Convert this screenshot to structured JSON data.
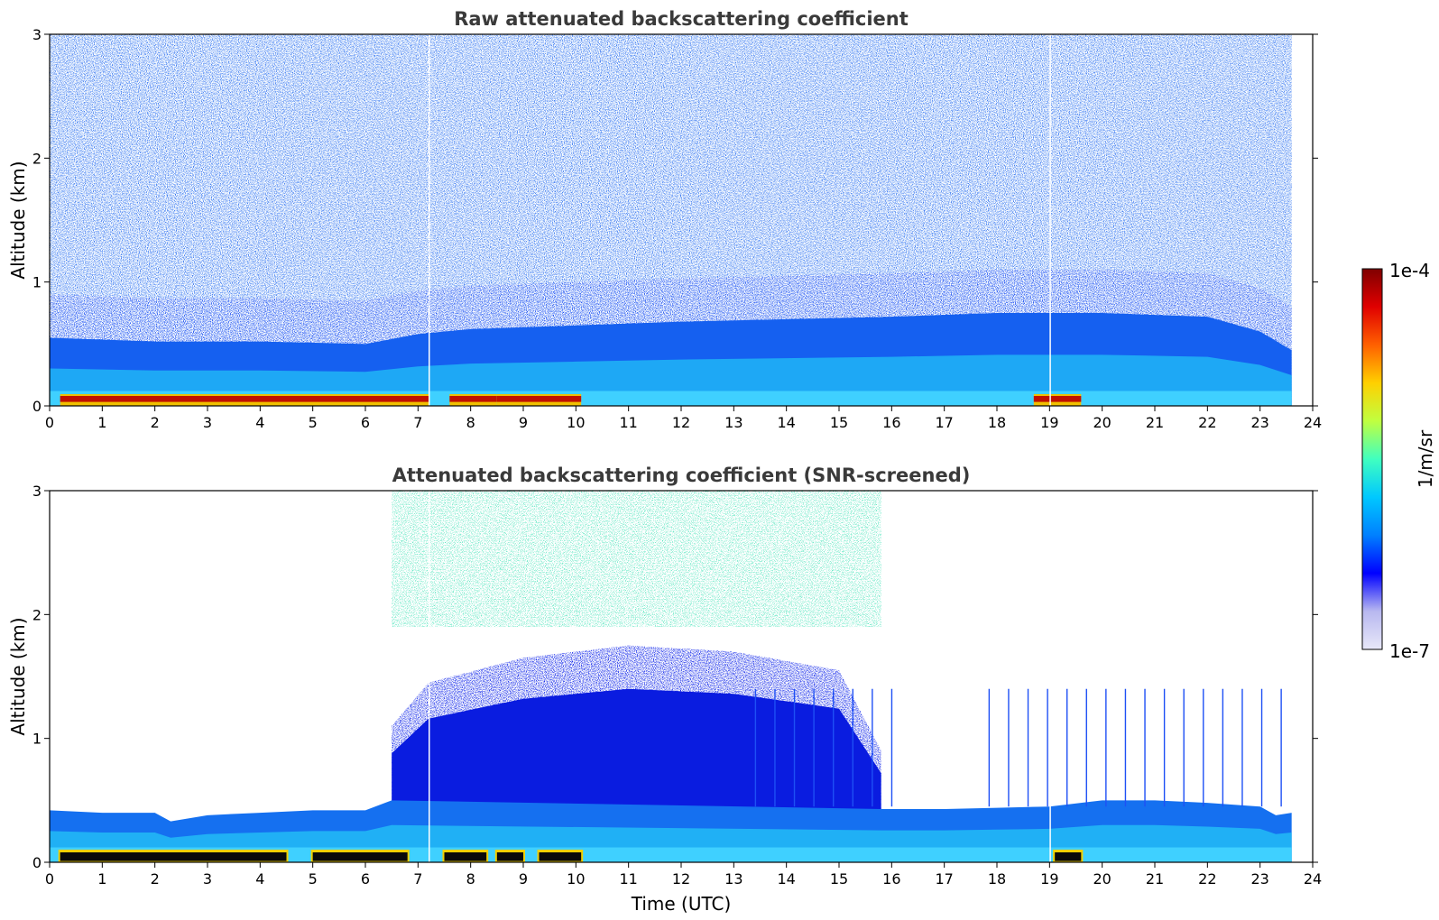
{
  "chart_data": [
    {
      "type": "heatmap",
      "title": "Raw attenuated backscattering coefficient",
      "xlabel": "",
      "ylabel": "Altitude (km)",
      "xlim": [
        0,
        24
      ],
      "ylim": [
        0,
        3
      ],
      "xticks": [
        "0",
        "1",
        "2",
        "3",
        "4",
        "5",
        "6",
        "7",
        "8",
        "9",
        "10",
        "11",
        "12",
        "13",
        "14",
        "15",
        "16",
        "17",
        "18",
        "19",
        "20",
        "21",
        "22",
        "23",
        "24"
      ],
      "yticks": [
        "0",
        "1",
        "2",
        "3"
      ],
      "data_end_time": 23.6,
      "boundary_layer_top": {
        "x": [
          0,
          2,
          4,
          6,
          7,
          8,
          10,
          12,
          14,
          16,
          18,
          20,
          22,
          23,
          23.6
        ],
        "y": [
          0.55,
          0.52,
          0.52,
          0.5,
          0.58,
          0.62,
          0.65,
          0.68,
          0.7,
          0.72,
          0.75,
          0.75,
          0.72,
          0.6,
          0.45
        ]
      },
      "surface_layer_intense": {
        "segments": [
          [
            0.2,
            7.2
          ],
          [
            7.6,
            8.5
          ],
          [
            8.5,
            10.1
          ],
          [
            18.7,
            19.6
          ]
        ],
        "altitude_km": [
          0.0,
          0.08
        ]
      },
      "gaps_time_utc": [
        7.2,
        19.0
      ]
    },
    {
      "type": "heatmap",
      "title": "Attenuated backscattering coefficient (SNR-screened)",
      "xlabel": "Time (UTC)",
      "ylabel": "Altitude (km)",
      "xlim": [
        0,
        24
      ],
      "ylim": [
        0,
        3
      ],
      "xticks": [
        "0",
        "1",
        "2",
        "3",
        "4",
        "5",
        "6",
        "7",
        "8",
        "9",
        "10",
        "11",
        "12",
        "13",
        "14",
        "15",
        "16",
        "17",
        "18",
        "19",
        "20",
        "21",
        "22",
        "23",
        "24"
      ],
      "yticks": [
        "0",
        "1",
        "2",
        "3"
      ],
      "data_end_time": 23.6,
      "mixed_layer_top": {
        "x": [
          0,
          1,
          2,
          2.3,
          3,
          4,
          5,
          6,
          6.5,
          15.8,
          17,
          18,
          19,
          20,
          21,
          22,
          23,
          23.3,
          23.6
        ],
        "y": [
          0.42,
          0.4,
          0.4,
          0.33,
          0.38,
          0.4,
          0.42,
          0.42,
          0.5,
          0.43,
          0.43,
          0.44,
          0.45,
          0.5,
          0.5,
          0.48,
          0.45,
          0.38,
          0.4
        ]
      },
      "convective_region": {
        "time_utc": [
          6.5,
          15.8
        ],
        "top_km": 1.9
      },
      "surface_layer_black": {
        "segments": [
          [
            0.2,
            4.5
          ],
          [
            5.0,
            6.8
          ],
          [
            7.5,
            8.3
          ],
          [
            8.5,
            9.0
          ],
          [
            9.3,
            10.1
          ],
          [
            19.1,
            19.6
          ]
        ],
        "altitude_km": [
          0.01,
          0.08
        ]
      },
      "gaps_time_utc": [
        7.2,
        19.0
      ]
    }
  ],
  "colorbar": {
    "label": "1/m/sr",
    "max_label": "1e-4",
    "min_label": "1e-7",
    "colormap": "jet",
    "colors": [
      "#e8e8f8",
      "#b8b8f0",
      "#0000ff",
      "#0080ff",
      "#00c8ff",
      "#40ffc0",
      "#c0ff40",
      "#ffd000",
      "#ff6000",
      "#e00000",
      "#800000"
    ]
  }
}
